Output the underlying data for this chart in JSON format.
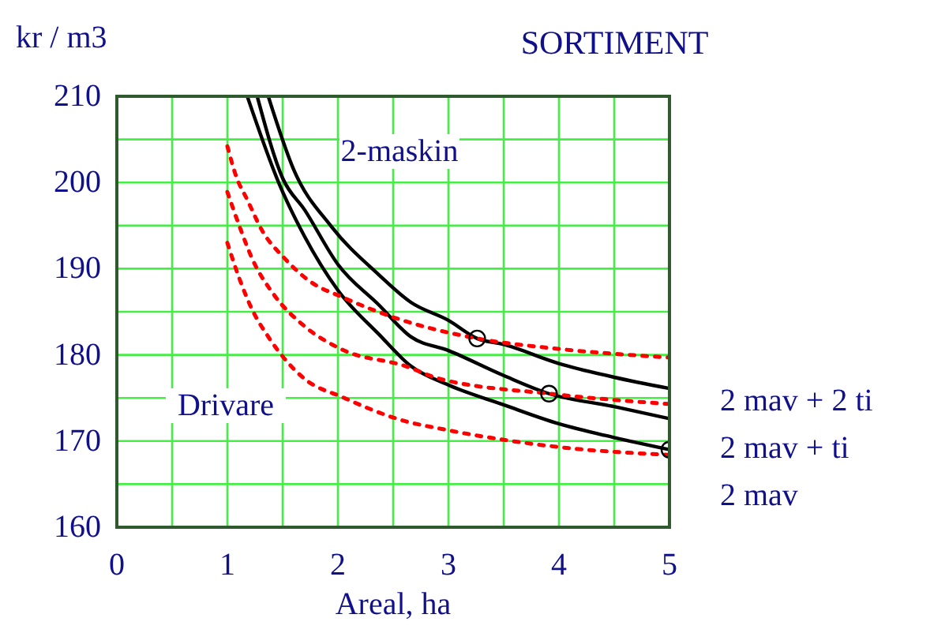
{
  "chart_data": {
    "type": "line",
    "title": "SORTIMENT",
    "xlabel": "Areal, ha",
    "ylabel": "kr / m3",
    "xlim": [
      0,
      5
    ],
    "ylim": [
      160,
      210
    ],
    "xticks": [
      0,
      1,
      2,
      3,
      4,
      5
    ],
    "yticks": [
      160,
      170,
      180,
      190,
      200,
      210
    ],
    "grid": true,
    "annotations": [
      "2-maskin",
      "Drivare"
    ],
    "series": [
      {
        "name": "2 mav + 2 ti",
        "color": "#000000",
        "line_style": "solid",
        "x": [
          1.37,
          1.6,
          1.94,
          2.37,
          2.66,
          3.0,
          3.26,
          3.5,
          4.0,
          4.5,
          5.0
        ],
        "values": [
          210,
          201.5,
          194.9,
          189.3,
          186.1,
          184,
          181.9,
          181.2,
          179,
          177.4,
          176.1
        ]
      },
      {
        "name": "2 mav + ti",
        "color": "#000000",
        "line_style": "solid",
        "x": [
          1.27,
          1.5,
          1.7,
          2.0,
          2.37,
          2.66,
          3.0,
          3.5,
          3.91,
          4.5,
          5.0
        ],
        "values": [
          210,
          200.5,
          196.8,
          190.5,
          185.8,
          182.1,
          180.5,
          177.6,
          175.5,
          174,
          172.6
        ]
      },
      {
        "name": "2 mav",
        "color": "#000000",
        "line_style": "solid",
        "x": [
          1.18,
          1.47,
          1.7,
          2.0,
          2.37,
          2.66,
          3.0,
          3.5,
          4.0,
          4.5,
          5.0
        ],
        "values": [
          210,
          199.8,
          193.7,
          187.5,
          182.4,
          178.7,
          176.5,
          174.2,
          172,
          170.4,
          169
        ]
      },
      {
        "color": "#ff0000",
        "line_style": "dotted",
        "x": [
          1.0,
          1.08,
          1.18,
          1.32,
          1.51,
          1.75,
          2.04,
          2.47,
          3.26,
          3.99,
          4.99
        ],
        "values": [
          204.2,
          200.7,
          198,
          194.3,
          191.3,
          188.5,
          186.7,
          184.5,
          181.9,
          180.7,
          179.7
        ]
      },
      {
        "color": "#ff0000",
        "line_style": "dotted",
        "x": [
          1.0,
          1.11,
          1.23,
          1.42,
          1.7,
          2.04,
          2.61,
          2.9,
          3.91,
          4.99
        ],
        "values": [
          198.9,
          194.9,
          191,
          187,
          183.3,
          180.6,
          178.7,
          177.3,
          175.5,
          174.3
        ]
      },
      {
        "color": "#ff0000",
        "line_style": "dotted",
        "x": [
          1.0,
          1.11,
          1.23,
          1.37,
          1.7,
          2.04,
          2.61,
          2.94,
          4.0,
          4.99
        ],
        "values": [
          193,
          188.8,
          185.1,
          182.1,
          177.2,
          175.1,
          172.3,
          171.4,
          169.3,
          168.4
        ]
      },
      {
        "type": "scatter",
        "color": "#000000",
        "marker": "circle",
        "x": [
          3.26,
          3.91,
          5.0
        ],
        "values": [
          181.9,
          175.5,
          169
        ]
      }
    ]
  }
}
